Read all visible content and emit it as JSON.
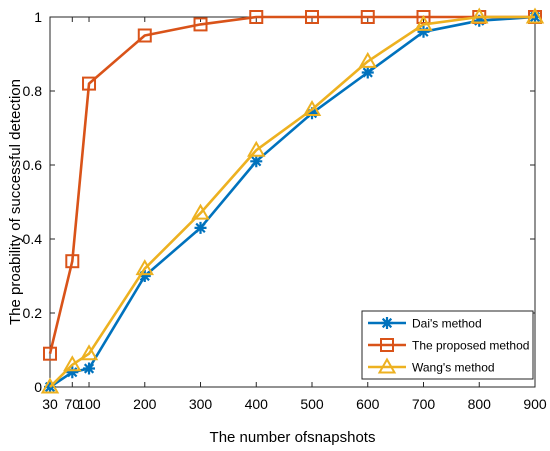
{
  "chart_data": {
    "type": "line",
    "title": "",
    "xlabel": "The number ofsnapshots",
    "ylabel": "The proability of successful detection",
    "x": [
      30,
      70,
      100,
      200,
      300,
      400,
      500,
      600,
      700,
      800,
      900
    ],
    "x_tick_labels": [
      "30",
      "70",
      "100",
      "200",
      "300",
      "400",
      "500",
      "600",
      "700",
      "800",
      "900"
    ],
    "y_ticks": [
      0,
      0.2,
      0.4,
      0.6,
      0.8,
      1
    ],
    "y_tick_labels": [
      "0",
      "0.2",
      "0.4",
      "0.6",
      "0.8",
      "1"
    ],
    "xlim": [
      30,
      900
    ],
    "ylim": [
      0,
      1
    ],
    "grid": false,
    "legend_position": "bottom-right",
    "series": [
      {
        "name": "Dai's method",
        "color": "#0072BD",
        "marker": "asterisk",
        "values": [
          0,
          0.04,
          0.05,
          0.3,
          0.43,
          0.61,
          0.74,
          0.85,
          0.96,
          0.99,
          1.0
        ]
      },
      {
        "name": "The proposed method",
        "color": "#D95319",
        "marker": "square",
        "values": [
          0.09,
          0.34,
          0.82,
          0.95,
          0.98,
          1.0,
          1.0,
          1.0,
          1.0,
          1.0,
          1.0
        ]
      },
      {
        "name": "Wang's method",
        "color": "#EDB120",
        "marker": "triangle",
        "values": [
          0,
          0.06,
          0.09,
          0.32,
          0.47,
          0.64,
          0.75,
          0.88,
          0.98,
          1.0,
          1.0
        ]
      }
    ]
  }
}
